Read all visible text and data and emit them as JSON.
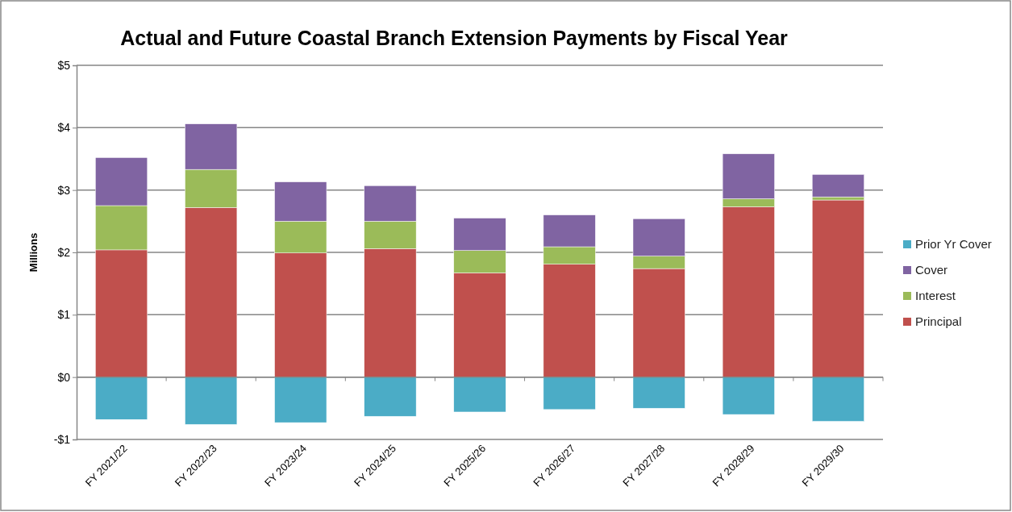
{
  "chart_data": {
    "type": "bar",
    "title": "Actual and Future Coastal Branch Extension Payments by Fiscal Year",
    "ylabel": "Millions",
    "stacked": true,
    "grid": "y",
    "legend": "right",
    "categories": [
      "FY 2021/22",
      "FY 2022/23",
      "FY 2023/24",
      "FY 2024/25",
      "FY 2025/26",
      "FY 2026/27",
      "FY 2027/28",
      "FY 2028/29",
      "FY 2029/30"
    ],
    "series": [
      {
        "name": "Principal",
        "color": "#c0504d",
        "values": [
          2.04,
          2.72,
          1.99,
          2.06,
          1.67,
          1.81,
          1.74,
          2.73,
          2.84
        ]
      },
      {
        "name": "Interest",
        "color": "#9bbb59",
        "values": [
          0.71,
          0.61,
          0.51,
          0.44,
          0.36,
          0.28,
          0.2,
          0.13,
          0.05
        ]
      },
      {
        "name": "Cover",
        "color": "#8064a2",
        "values": [
          0.77,
          0.73,
          0.63,
          0.57,
          0.52,
          0.51,
          0.6,
          0.72,
          0.36
        ]
      },
      {
        "name": "Prior Yr Cover",
        "color": "#4bacc6",
        "values": [
          -0.68,
          -0.76,
          -0.73,
          -0.63,
          -0.56,
          -0.52,
          -0.5,
          -0.6,
          -0.71
        ]
      }
    ],
    "ylim": [
      -1,
      5
    ],
    "yticks": [
      {
        "value": -1,
        "label": "-$1"
      },
      {
        "value": 0,
        "label": "$0"
      },
      {
        "value": 1,
        "label": "$1"
      },
      {
        "value": 2,
        "label": "$2"
      },
      {
        "value": 3,
        "label": "$3"
      },
      {
        "value": 4,
        "label": "$4"
      },
      {
        "value": 5,
        "label": "$5"
      }
    ]
  }
}
